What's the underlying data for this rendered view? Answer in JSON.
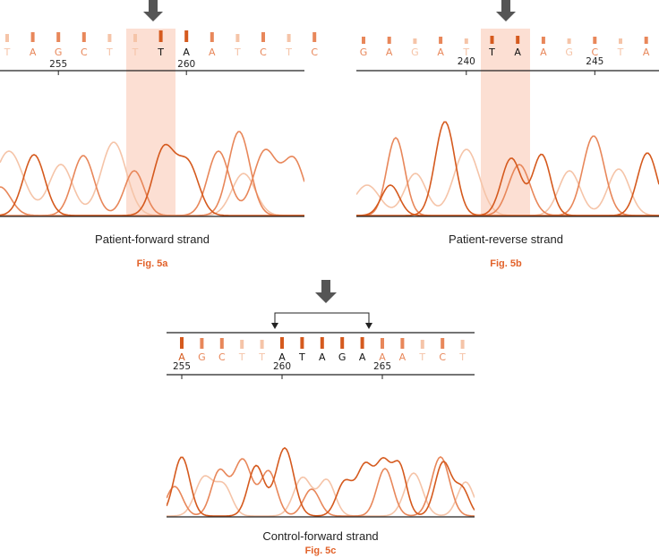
{
  "colors": {
    "dark": "#d55a1e",
    "medium": "#e8875a",
    "light": "#f5c4a8",
    "highlight": "#fbd9cb",
    "arrow": "#555555",
    "axis": "#222222",
    "figlabel": "#e2622a"
  },
  "panels": {
    "a": {
      "bases": [
        "T",
        "A",
        "G",
        "C",
        "T",
        "T",
        "T",
        "A",
        "A",
        "T",
        "C",
        "T",
        "C"
      ],
      "tints": [
        "light",
        "medium",
        "medium",
        "medium",
        "light",
        "light",
        "dark",
        "dark",
        "medium",
        "light",
        "medium",
        "light",
        "medium"
      ],
      "black": [
        6,
        7
      ],
      "ticks": [
        {
          "label": "255",
          "index": 2
        },
        {
          "label": "260",
          "index": 7
        }
      ],
      "caption": "Patient-forward strand",
      "figlabel": "Fig. 5a"
    },
    "b": {
      "bases": [
        "G",
        "A",
        "G",
        "A",
        "T",
        "T",
        "A",
        "A",
        "G",
        "C",
        "T",
        "A"
      ],
      "tints": [
        "medium",
        "medium",
        "light",
        "medium",
        "light",
        "dark",
        "dark",
        "medium",
        "light",
        "medium",
        "light",
        "medium"
      ],
      "black": [
        5,
        6
      ],
      "ticks": [
        {
          "label": "240",
          "index": 4
        },
        {
          "label": "245",
          "index": 9
        }
      ],
      "caption": "Patient-reverse strand",
      "figlabel": "Fig. 5b"
    },
    "c": {
      "bases": [
        "A",
        "G",
        "C",
        "T",
        "T",
        "A",
        "T",
        "A",
        "G",
        "A",
        "A",
        "A",
        "T",
        "C",
        "T"
      ],
      "tints": [
        "dark",
        "medium",
        "medium",
        "light",
        "light",
        "dark",
        "dark",
        "dark",
        "dark",
        "dark",
        "medium",
        "medium",
        "light",
        "medium",
        "light"
      ],
      "black": [
        5,
        6,
        7,
        8,
        9
      ],
      "ticks": [
        {
          "label": "255",
          "index": 0
        },
        {
          "label": "260",
          "index": 5
        },
        {
          "label": "265",
          "index": 10
        }
      ],
      "caption": "Control-forward strand",
      "figlabel": "Fig. 5c"
    }
  }
}
